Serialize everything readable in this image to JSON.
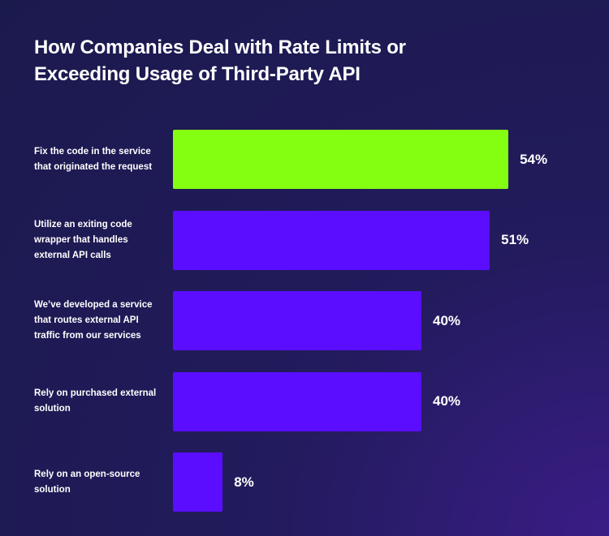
{
  "chart_data": {
    "type": "barh",
    "title": "How Companies Deal with Rate Limits or Exceeding Usage of Third-Party API",
    "categories": [
      "Fix the code in the service that originated the request",
      "Utilize an exiting code wrapper that handles external API calls",
      "We’ve developed a service that routes external API traffic from our services",
      "Rely on purchased external solution",
      "Rely on an open-source solution"
    ],
    "values": [
      54,
      51,
      40,
      40,
      8
    ],
    "value_labels": [
      "54%",
      "51%",
      "40%",
      "40%",
      "8%"
    ],
    "colors": [
      "#84ff12",
      "#5b0dff",
      "#5b0dff",
      "#5b0dff",
      "#5b0dff"
    ]
  }
}
